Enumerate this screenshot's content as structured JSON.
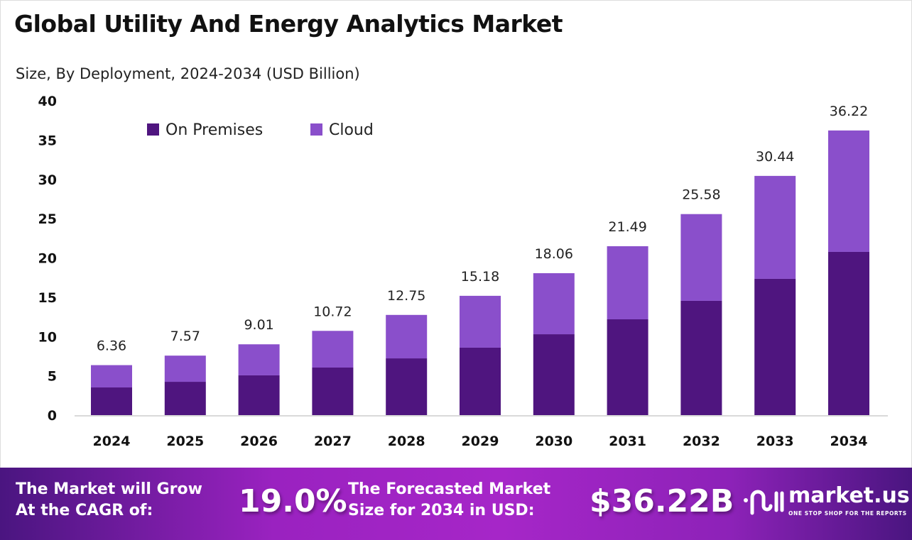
{
  "chart_data": {
    "type": "bar",
    "stacked": true,
    "title": "Global Utility And Energy Analytics Market",
    "subtitle": "Size, By Deployment, 2024-2034 (USD Billion)",
    "categories": [
      "2024",
      "2025",
      "2026",
      "2027",
      "2028",
      "2029",
      "2030",
      "2031",
      "2032",
      "2033",
      "2034"
    ],
    "series": [
      {
        "name": "On Premises",
        "color": "#4f157f",
        "values": [
          3.52,
          4.24,
          5.06,
          6.05,
          7.22,
          8.58,
          10.29,
          12.19,
          14.54,
          17.34,
          20.77
        ]
      },
      {
        "name": "Cloud",
        "color": "#8a4fcb",
        "values": [
          2.84,
          3.33,
          3.95,
          4.67,
          5.53,
          6.6,
          7.77,
          9.3,
          11.04,
          13.1,
          15.45
        ]
      }
    ],
    "totals": [
      "6.36",
      "7.57",
      "9.01",
      "10.72",
      "12.75",
      "15.18",
      "18.06",
      "21.49",
      "25.58",
      "30.44",
      "36.22"
    ],
    "yticks": [
      "0",
      "5",
      "10",
      "15",
      "20",
      "25",
      "30",
      "35",
      "40"
    ],
    "ylim": [
      0,
      40
    ],
    "grid": false,
    "legend_placement": "top-left"
  },
  "banner": {
    "cagr_label_1": "The Market will Grow",
    "cagr_label_2": "At the CAGR of:",
    "cagr_value": "19.0%",
    "forecast_label_1": "The Forecasted Market",
    "forecast_label_2": "Size for 2034 in USD:",
    "forecast_value": "$36.22B",
    "logo_name": "market.us",
    "logo_tagline": "ONE STOP SHOP FOR THE REPORTS"
  }
}
